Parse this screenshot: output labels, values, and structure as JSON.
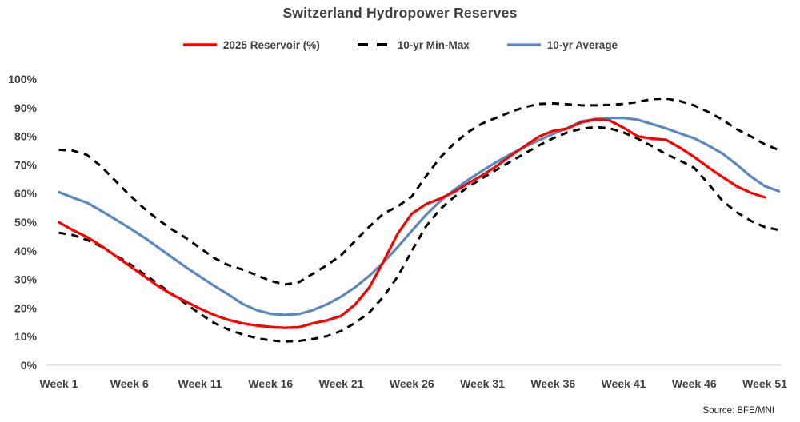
{
  "title": "Switzerland Hydropower Reserves",
  "source": "Source: BFE/MNI",
  "colors": {
    "text": "#404040",
    "axis_line": "#d0d0d0",
    "red": "#fe0000",
    "black": "#000000",
    "blue": "#5b88be"
  },
  "legend": [
    {
      "label": "2025 Reservoir (%)",
      "style": "solid",
      "color": "#fe0000"
    },
    {
      "label": "10-yr Min-Max",
      "style": "dashed",
      "color": "#000000"
    },
    {
      "label": "10-yr Average",
      "style": "solid",
      "color": "#5b88be"
    }
  ],
  "chart_data": {
    "type": "line",
    "title": "Switzerland Hydropower Reserves",
    "xlabel": "",
    "ylabel": "",
    "x_unit": "week",
    "xlim": [
      1,
      52
    ],
    "ylim": [
      0,
      100
    ],
    "grid": false,
    "y_ticks": [
      "0%",
      "10%",
      "20%",
      "30%",
      "40%",
      "50%",
      "60%",
      "70%",
      "80%",
      "90%",
      "100%"
    ],
    "y_tick_values": [
      0,
      10,
      20,
      30,
      40,
      50,
      60,
      70,
      80,
      90,
      100
    ],
    "x_ticks": [
      "Week 1",
      "Week 6",
      "Week 11",
      "Week 16",
      "Week 21",
      "Week 26",
      "Week 31",
      "Week 36",
      "Week 41",
      "Week 46",
      "Week 51"
    ],
    "x_tick_weeks": [
      1,
      6,
      11,
      16,
      21,
      26,
      31,
      36,
      41,
      46,
      51
    ],
    "series": [
      {
        "name": "10-yr Max",
        "style": "dashed",
        "color": "#000000",
        "start_week": 1,
        "values": [
          75.3,
          75,
          73.5,
          69.5,
          64.5,
          59.5,
          55,
          51,
          47.5,
          44.5,
          41,
          37.5,
          35,
          33.5,
          31.5,
          29.5,
          28.2,
          29,
          32,
          35,
          38.5,
          43.5,
          48.5,
          53,
          55.5,
          59,
          66,
          72.5,
          77.5,
          81.5,
          84.5,
          86.5,
          88.5,
          90.2,
          91.3,
          91.5,
          91.2,
          90.8,
          90.8,
          91,
          91.3,
          92,
          93,
          93.2,
          92.3,
          90.8,
          88.5,
          85.8,
          82.5,
          80,
          77.2,
          75.2
        ]
      },
      {
        "name": "10-yr Min",
        "style": "dashed",
        "color": "#000000",
        "start_week": 1,
        "values": [
          46.3,
          45.5,
          43.8,
          41.5,
          38.5,
          35.5,
          32,
          28.5,
          25,
          21.5,
          18,
          14.8,
          12.5,
          10.8,
          9.5,
          8.7,
          8.3,
          8.5,
          9.2,
          10.2,
          12,
          14.8,
          18.5,
          24,
          31,
          40,
          48.5,
          54.5,
          58.8,
          62.3,
          65.4,
          68.3,
          71.2,
          74,
          76.8,
          79.3,
          81.3,
          82.6,
          83.2,
          82.8,
          81.3,
          79.2,
          76.6,
          73.8,
          71.5,
          69,
          63.5,
          57.5,
          53.5,
          50.5,
          48.3,
          47.3
        ]
      },
      {
        "name": "10-yr Average",
        "style": "solid",
        "color": "#5b88be",
        "start_week": 1,
        "values": [
          60.5,
          58.6,
          56.8,
          54,
          51,
          48,
          44.8,
          41.3,
          37.8,
          34.3,
          31,
          27.8,
          24.8,
          21.5,
          19.3,
          18,
          17.6,
          17.9,
          19.3,
          21.3,
          24,
          27.3,
          31.3,
          36,
          41.3,
          47,
          52.5,
          57.3,
          61.3,
          64.8,
          68,
          71,
          73.8,
          76.3,
          78.6,
          80.8,
          82.8,
          85.2,
          86,
          86.4,
          86.4,
          85.8,
          84.3,
          82.8,
          81,
          79.3,
          76.8,
          74,
          70.2,
          66,
          62.6,
          60.8
        ]
      },
      {
        "name": "2025 Reservoir (%)",
        "style": "solid",
        "color": "#fe0000",
        "start_week": 1,
        "values": [
          50,
          47.2,
          44.8,
          41.8,
          38.3,
          34.8,
          31.3,
          27.8,
          24.8,
          22.3,
          19.8,
          17.6,
          15.9,
          14.7,
          13.9,
          13.4,
          13.1,
          13.3,
          14.7,
          15.7,
          17.3,
          21.3,
          27.3,
          36.3,
          46,
          53,
          56.3,
          58.2,
          60.6,
          63.6,
          66.4,
          69.6,
          73.2,
          76.6,
          79.9,
          81.9,
          82.7,
          84.9,
          85.9,
          85.6,
          83,
          80,
          79.2,
          78.8,
          76,
          72.8,
          69.2,
          65.8,
          62.6,
          60.3,
          58.7
        ]
      }
    ],
    "legend_position": "top"
  }
}
